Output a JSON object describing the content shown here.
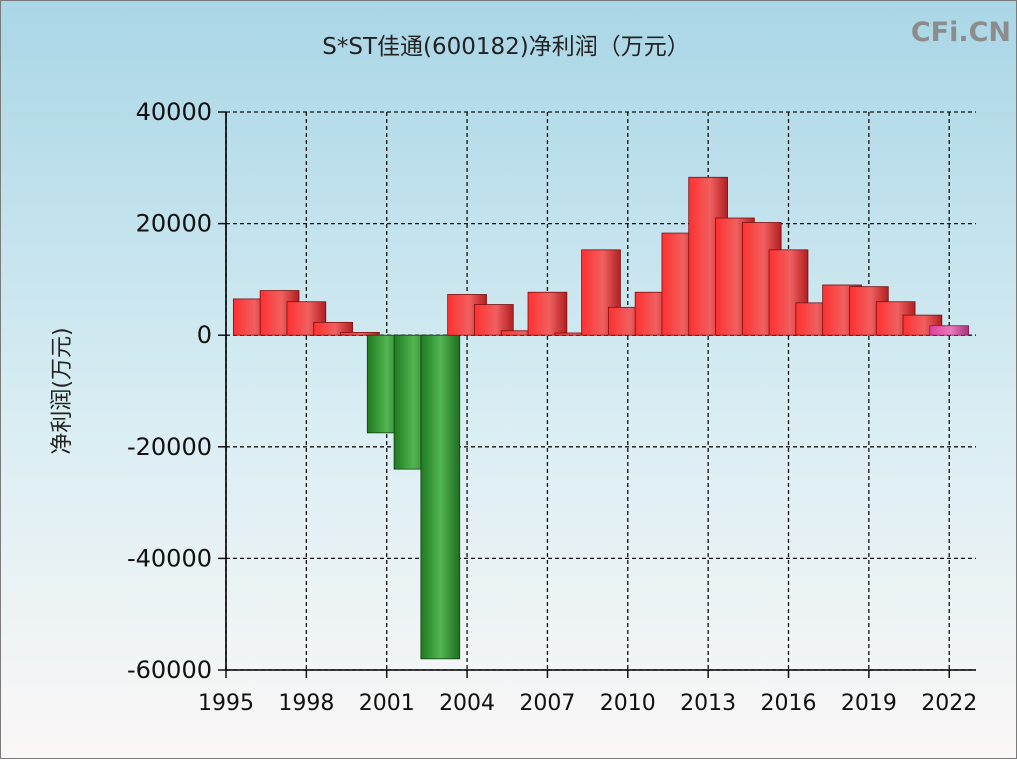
{
  "watermark": "CFi.CN",
  "chart_data": {
    "type": "bar",
    "title": "S*ST佳通(600182)净利润（万元）",
    "ylabel": "净利润(万元)",
    "xlabel": "",
    "xlim": [
      1995,
      2023
    ],
    "ylim": [
      -60000,
      40000
    ],
    "x_ticks": [
      1995,
      1998,
      2001,
      2004,
      2007,
      2010,
      2013,
      2016,
      2019,
      2022
    ],
    "y_ticks": [
      40000,
      20000,
      0,
      -20000,
      -40000,
      -60000
    ],
    "grid": true,
    "colors": {
      "positive": "#e03a3a",
      "negative": "#2e8b2e",
      "latest": "#d04a98"
    },
    "bars": [
      {
        "year": 1996,
        "value": 6500
      },
      {
        "year": 1997,
        "value": 8000
      },
      {
        "year": 1998,
        "value": 6000
      },
      {
        "year": 1999,
        "value": 2300
      },
      {
        "year": 2000,
        "value": 500
      },
      {
        "year": 2001,
        "value": -17500
      },
      {
        "year": 2002,
        "value": -24000
      },
      {
        "year": 2003,
        "value": -58000
      },
      {
        "year": 2004,
        "value": 7300
      },
      {
        "year": 2005,
        "value": 5500
      },
      {
        "year": 2006,
        "value": 800
      },
      {
        "year": 2007,
        "value": 7700
      },
      {
        "year": 2008,
        "value": 400
      },
      {
        "year": 2009,
        "value": 15300
      },
      {
        "year": 2010,
        "value": 5000
      },
      {
        "year": 2011,
        "value": 7700
      },
      {
        "year": 2012,
        "value": 18300
      },
      {
        "year": 2013,
        "value": 28300
      },
      {
        "year": 2014,
        "value": 21000
      },
      {
        "year": 2015,
        "value": 20200
      },
      {
        "year": 2016,
        "value": 15300
      },
      {
        "year": 2017,
        "value": 5800
      },
      {
        "year": 2018,
        "value": 9000
      },
      {
        "year": 2019,
        "value": 8700
      },
      {
        "year": 2020,
        "value": 6000
      },
      {
        "year": 2021,
        "value": 3600
      },
      {
        "year": 2022,
        "value": 1700
      }
    ]
  }
}
